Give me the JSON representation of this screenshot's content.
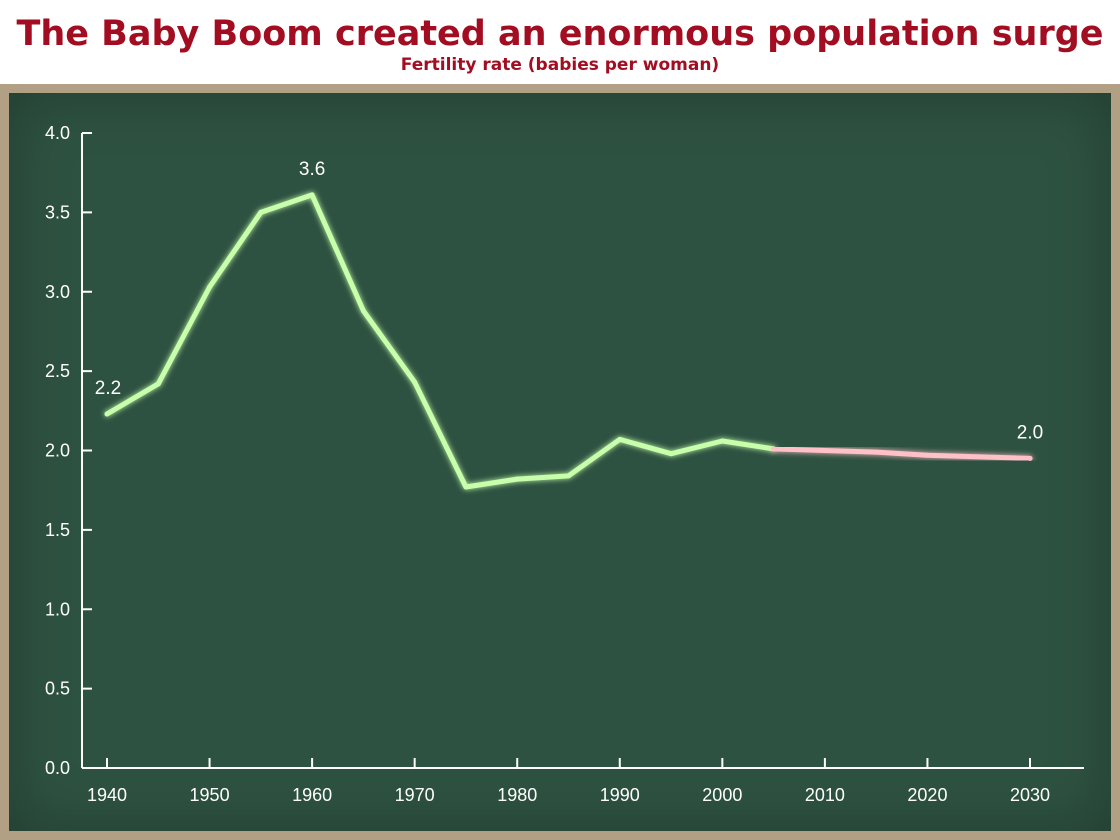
{
  "title": "The Baby Boom created an enormous population surge",
  "subtitle": "Fertility rate (babies per woman)",
  "colors": {
    "title": "#a30d21",
    "frame": "#b2a084",
    "board": "#2e5241",
    "axis": "#ffffff",
    "historical_line": "#c8ffaa",
    "projection_line": "#ffc0c8"
  },
  "chart_data": {
    "type": "line",
    "title": "The Baby Boom created an enormous population surge",
    "subtitle": "Fertility rate (babies per woman)",
    "xlabel": "",
    "ylabel": "",
    "xlim": [
      1938,
      2035
    ],
    "ylim": [
      0,
      4.0
    ],
    "x_ticks": [
      1940,
      1950,
      1960,
      1970,
      1980,
      1990,
      2000,
      2010,
      2020,
      2030
    ],
    "x_tick_labels": [
      "1940",
      "1950",
      "1960",
      "1970",
      "1980",
      "1990",
      "2000",
      "2010",
      "2020",
      "2030"
    ],
    "y_ticks": [
      0,
      0.5,
      1.0,
      1.5,
      2.0,
      2.5,
      3.0,
      3.5,
      4.0
    ],
    "y_tick_labels": [
      "0.0",
      "0.5",
      "1.0",
      "1.5",
      "2.0",
      "2.5",
      "3.0",
      "3.5",
      "4.0"
    ],
    "grid": false,
    "series": [
      {
        "style": "historical",
        "color": "#c8ffaa",
        "x": [
          1940,
          1945,
          1950,
          1955,
          1960,
          1965,
          1970,
          1975,
          1980,
          1985,
          1990,
          1995,
          2000,
          2005
        ],
        "y": [
          2.23,
          2.42,
          3.03,
          3.5,
          3.61,
          2.88,
          2.43,
          1.77,
          1.82,
          1.84,
          2.07,
          1.98,
          2.06,
          2.01
        ]
      },
      {
        "style": "projection",
        "color": "#ffc0c8",
        "x": [
          2005,
          2015,
          2020,
          2030
        ],
        "y": [
          2.01,
          1.99,
          1.97,
          1.95
        ]
      }
    ],
    "annotations": [
      {
        "text": "2.2",
        "x": 1940,
        "y": 2.23,
        "anchor": "above-right"
      },
      {
        "text": "3.6",
        "x": 1960,
        "y": 3.61,
        "anchor": "above"
      },
      {
        "text": "2.0",
        "x": 2030,
        "y": 1.95,
        "anchor": "above"
      }
    ]
  }
}
